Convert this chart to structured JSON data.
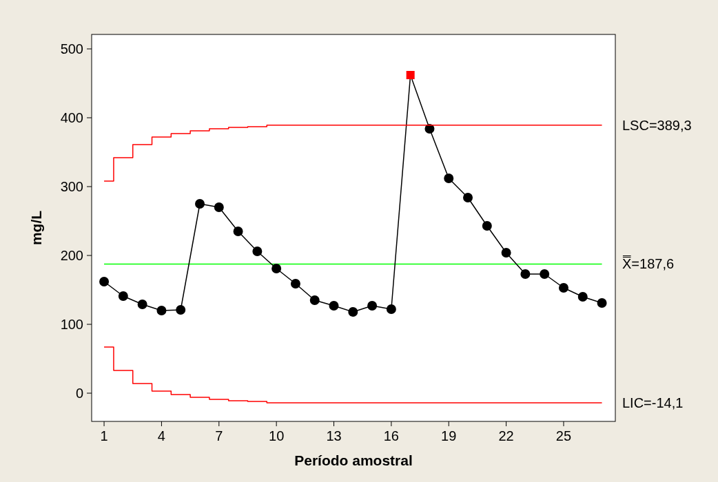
{
  "chart_data": {
    "type": "line",
    "xlabel": "Período amostral",
    "ylabel": "mg/L",
    "xlim": [
      0.35,
      27.7
    ],
    "xticks": [
      1,
      4,
      7,
      10,
      13,
      16,
      19,
      22,
      25
    ],
    "ylim": [
      -41,
      521
    ],
    "yticks": [
      0,
      100,
      200,
      300,
      400,
      500
    ],
    "grid": false,
    "x": [
      1,
      2,
      3,
      4,
      5,
      6,
      7,
      8,
      9,
      10,
      11,
      12,
      13,
      14,
      15,
      16,
      17,
      18,
      19,
      20,
      21,
      22,
      23,
      24,
      25,
      26,
      27
    ],
    "series": [
      {
        "color": "#000000",
        "marker": "none",
        "values": [
          162,
          141,
          129,
          120,
          121,
          275,
          270,
          235,
          206,
          181,
          159,
          135,
          127,
          118,
          127,
          122,
          462,
          384,
          312,
          284,
          243,
          204,
          173,
          173,
          153,
          140,
          131
        ]
      },
      {
        "type": "scatter",
        "color": "#000000",
        "marker": "circle",
        "values": [
          162,
          141,
          129,
          120,
          121,
          275,
          270,
          235,
          206,
          181,
          159,
          135,
          127,
          118,
          127,
          122,
          null,
          384,
          312,
          284,
          243,
          204,
          173,
          173,
          153,
          140,
          131
        ]
      },
      {
        "type": "scatter",
        "color": "#ff0000",
        "marker": "square",
        "x": [
          17
        ],
        "values": [
          462
        ]
      },
      {
        "type": "step",
        "name": "LSC=389,3",
        "color": "#ff0000",
        "values": [
          308,
          342,
          361,
          372,
          377,
          381,
          384,
          386,
          387,
          389.3,
          389.3,
          389.3,
          389.3,
          389.3,
          389.3,
          389.3,
          389.3,
          389.3,
          389.3,
          389.3,
          389.3,
          389.3,
          389.3,
          389.3,
          389.3,
          389.3,
          389.3
        ]
      },
      {
        "type": "step",
        "name": "LIC=-14,1",
        "color": "#ff0000",
        "values": [
          67,
          33,
          14,
          3,
          -2,
          -6,
          -9,
          -11,
          -12,
          -14.1,
          -14.1,
          -14.1,
          -14.1,
          -14.1,
          -14.1,
          -14.1,
          -14.1,
          -14.1,
          -14.1,
          -14.1,
          -14.1,
          -14.1,
          -14.1,
          -14.1,
          -14.1,
          -14.1,
          -14.1
        ]
      }
    ],
    "ref_lines": [
      {
        "axis": "y",
        "value": 187.6,
        "label": "X̿=187,6",
        "color": "#00ff00"
      }
    ]
  }
}
